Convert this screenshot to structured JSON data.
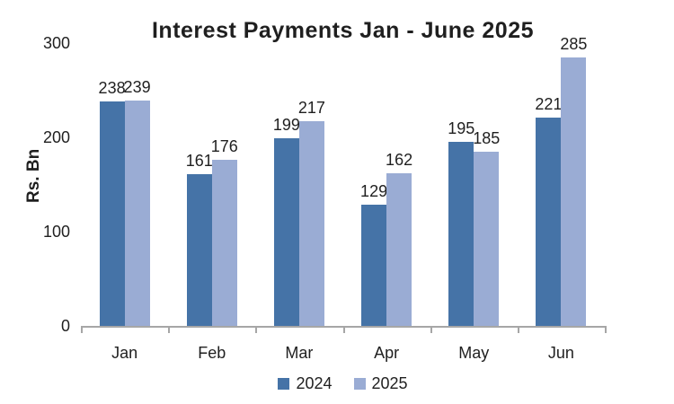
{
  "chart_data": {
    "type": "bar",
    "title": "Interest Payments Jan - June 2025",
    "xlabel": "",
    "ylabel": "Rs. Bn",
    "categories": [
      "Jan",
      "Feb",
      "Mar",
      "Apr",
      "May",
      "Jun"
    ],
    "series": [
      {
        "name": "2024",
        "color": "#4573A7",
        "values": [
          238,
          161,
          199,
          129,
          195,
          221
        ]
      },
      {
        "name": "2025",
        "color": "#9AACD4",
        "values": [
          239,
          176,
          217,
          162,
          185,
          285
        ]
      }
    ],
    "ylim": [
      0,
      300
    ],
    "yticks": [
      0,
      100,
      200,
      300
    ],
    "grid": false,
    "legend_position": "bottom",
    "data_labels": true
  },
  "colors": {
    "axis_line": "#a6a6a6",
    "text": "#1f1f1f"
  }
}
